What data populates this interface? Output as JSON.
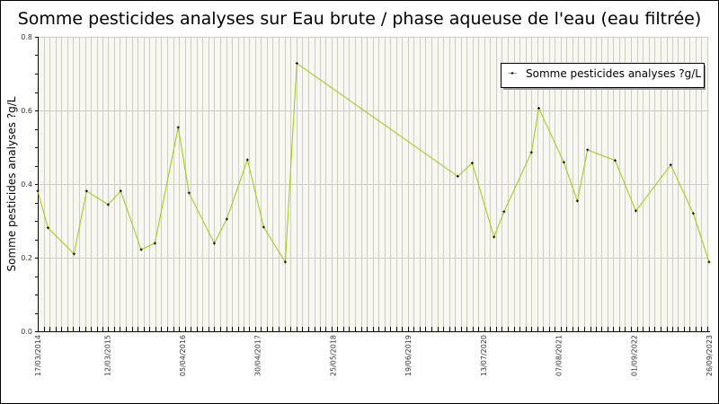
{
  "chart_data": {
    "type": "line",
    "title": "Somme pesticides analyses sur Eau brute / phase aqueuse de l'eau (eau filtrée)",
    "xlabel": "",
    "ylabel": "Somme pesticides analyses ?g/L",
    "ylim": [
      0,
      0.8
    ],
    "xlim": [
      "2014-03-17",
      "2023-09-26"
    ],
    "yticks": [
      "0.0",
      "0.2",
      "0.4",
      "0.6",
      "0.8"
    ],
    "xticks": [
      {
        "date": "2014-03-17",
        "label": "17/03/2014"
      },
      {
        "date": "2015-03-12",
        "label": "12/03/2015"
      },
      {
        "date": "2016-04-05",
        "label": "05/04/2016"
      },
      {
        "date": "2017-04-30",
        "label": "30/04/2017"
      },
      {
        "date": "2018-05-25",
        "label": "25/05/2018"
      },
      {
        "date": "2019-06-19",
        "label": "19/06/2019"
      },
      {
        "date": "2020-07-13",
        "label": "13/07/2020"
      },
      {
        "date": "2021-08-07",
        "label": "07/08/2021"
      },
      {
        "date": "2022-09-01",
        "label": "01/09/2022"
      },
      {
        "date": "2023-09-26",
        "label": "26/09/2023"
      }
    ],
    "grid": true,
    "legend_position": "top-right",
    "colors": {
      "line": "#99cc00",
      "marker": "#000000",
      "plot_bg": "#f8f8f0",
      "grid": "#cccccc"
    },
    "series": [
      {
        "name": "Somme pesticides analyses ?g/L",
        "x": [
          "2014-03-17",
          "2014-05-09",
          "2014-09-21",
          "2014-11-25",
          "2015-03-17",
          "2015-05-21",
          "2015-09-04",
          "2015-11-14",
          "2016-03-14",
          "2016-05-09",
          "2016-09-17",
          "2016-11-21",
          "2017-03-08",
          "2017-05-31",
          "2017-09-20",
          "2017-11-19",
          "2020-03-02",
          "2020-05-16",
          "2020-09-06",
          "2020-10-28",
          "2021-03-19",
          "2021-04-26",
          "2021-09-03",
          "2021-11-12",
          "2022-01-04",
          "2022-05-27",
          "2022-09-11",
          "2023-03-11",
          "2023-07-06",
          "2023-09-26"
        ],
        "y": [
          0.381,
          0.281,
          0.21,
          0.381,
          0.344,
          0.381,
          0.222,
          0.239,
          0.554,
          0.376,
          0.239,
          0.305,
          0.466,
          0.283,
          0.188,
          0.728,
          0.421,
          0.457,
          0.256,
          0.325,
          0.486,
          0.606,
          0.459,
          0.354,
          0.493,
          0.464,
          0.327,
          0.452,
          0.32,
          0.188
        ]
      }
    ]
  }
}
